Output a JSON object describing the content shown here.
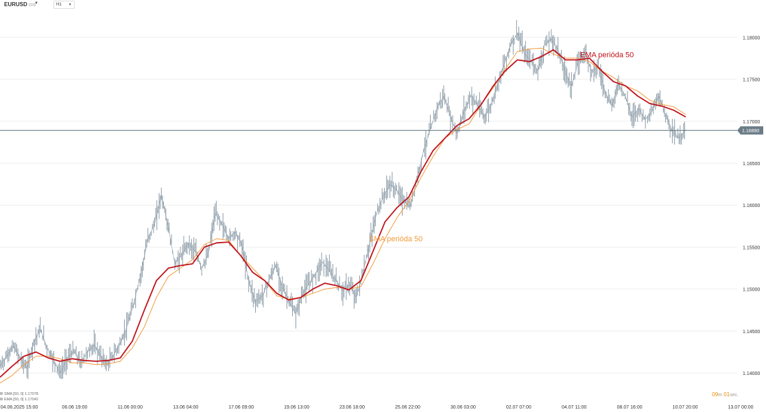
{
  "header": {
    "symbol": "EURUSD",
    "symbol_sub": "CFD",
    "timeframe": "H1"
  },
  "legend": [
    {
      "label": "SMA [50, 0] 1.17078"
    },
    {
      "label": "EMA [50, 0] 1.17042"
    }
  ],
  "timer": {
    "minutes": "09",
    "m_unit": "m",
    "seconds": "01",
    "s_unit": "sec."
  },
  "colors": {
    "price": "#8a9aa6",
    "ema": "#c0121b",
    "sma": "#f29a3c",
    "current_line": "#5a6e7c",
    "price_tag": "#6b7c88",
    "grid": "#eeeeee"
  },
  "chart_data": {
    "type": "line",
    "symbol": "EURUSD",
    "timeframe": "H1",
    "y_ticks": [
      "1.18000",
      "1.17500",
      "1.17000",
      "1.16500",
      "1.16000",
      "1.15500",
      "1.15000",
      "1.14500",
      "1.14000"
    ],
    "ylim": [
      1.1365,
      1.1828
    ],
    "x_tick_labels": [
      "04.06.2025 15:00",
      "06.06 19:00",
      "11.06 00:00",
      "13.06 04:00",
      "17.06 09:00",
      "19.06 13:00",
      "23.06 18:00",
      "25.06 22:00",
      "30.06 03:00",
      "02.07 07:00",
      "04.07 11:00",
      "08.07 16:00",
      "10.07 20:00",
      "13.07 00:00"
    ],
    "current_price": "1.16890",
    "current_price_value": 1.1689,
    "annotations": [
      {
        "text": "EMA perióda 50",
        "series": "ema"
      },
      {
        "text": "SMA perióda 50",
        "series": "sma"
      }
    ],
    "series": [
      {
        "name": "price",
        "values": [
          1.1408,
          1.142,
          1.1432,
          1.1418,
          1.1405,
          1.1437,
          1.1452,
          1.143,
          1.1415,
          1.14,
          1.1418,
          1.1426,
          1.1412,
          1.1425,
          1.1433,
          1.142,
          1.141,
          1.1423,
          1.1437,
          1.1458,
          1.1486,
          1.152,
          1.156,
          1.1578,
          1.1612,
          1.1575,
          1.153,
          1.154,
          1.1555,
          1.1545,
          1.1525,
          1.1542,
          1.159,
          1.1578,
          1.156,
          1.1568,
          1.1552,
          1.151,
          1.1485,
          1.1492,
          1.151,
          1.1528,
          1.1503,
          1.1485,
          1.147,
          1.1495,
          1.1507,
          1.152,
          1.1532,
          1.1522,
          1.151,
          1.1498,
          1.1505,
          1.149,
          1.152,
          1.1555,
          1.159,
          1.161,
          1.1625,
          1.1618,
          1.1605,
          1.1598,
          1.163,
          1.1665,
          1.169,
          1.1715,
          1.173,
          1.1705,
          1.1685,
          1.1712,
          1.173,
          1.172,
          1.1705,
          1.1718,
          1.1745,
          1.1768,
          1.1792,
          1.1805,
          1.178,
          1.1772,
          1.176,
          1.179,
          1.1798,
          1.1785,
          1.176,
          1.1742,
          1.177,
          1.1782,
          1.176,
          1.1765,
          1.1735,
          1.1718,
          1.1745,
          1.173,
          1.1705,
          1.1715,
          1.1702,
          1.1712,
          1.173,
          1.1708,
          1.1688,
          1.168,
          1.169
        ]
      },
      {
        "name": "ema",
        "values": [
          1.1395,
          1.1408,
          1.142,
          1.1425,
          1.1418,
          1.1414,
          1.1417,
          1.1415,
          1.1414,
          1.1415,
          1.1418,
          1.1438,
          1.1475,
          1.151,
          1.1525,
          1.1528,
          1.153,
          1.155,
          1.1555,
          1.1556,
          1.154,
          1.152,
          1.151,
          1.1495,
          1.1487,
          1.149,
          1.15,
          1.1507,
          1.1504,
          1.1499,
          1.151,
          1.1545,
          1.158,
          1.1597,
          1.161,
          1.164,
          1.1665,
          1.168,
          1.1695,
          1.1703,
          1.172,
          1.1742,
          1.176,
          1.1773,
          1.1771,
          1.1777,
          1.1785,
          1.1773,
          1.1773,
          1.1775,
          1.176,
          1.1747,
          1.1742,
          1.173,
          1.1721,
          1.1718,
          1.1713,
          1.1705
        ]
      },
      {
        "name": "sma",
        "values": [
          1.1388,
          1.1397,
          1.141,
          1.142,
          1.142,
          1.1417,
          1.1412,
          1.1412,
          1.141,
          1.1411,
          1.1414,
          1.143,
          1.1455,
          1.149,
          1.1515,
          1.1525,
          1.1535,
          1.1553,
          1.156,
          1.1558,
          1.154,
          1.1525,
          1.151,
          1.1492,
          1.1488,
          1.149,
          1.1495,
          1.15,
          1.1502,
          1.15,
          1.1503,
          1.153,
          1.156,
          1.1585,
          1.1605,
          1.1633,
          1.1658,
          1.168,
          1.169,
          1.1697,
          1.172,
          1.174,
          1.1762,
          1.1783,
          1.1786,
          1.1787,
          1.178,
          1.1775,
          1.1775,
          1.1771,
          1.176,
          1.1752,
          1.1742,
          1.1736,
          1.1725,
          1.172,
          1.1717,
          1.1708
        ]
      }
    ]
  }
}
